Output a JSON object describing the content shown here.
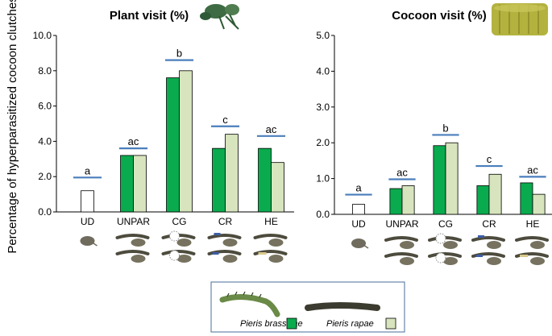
{
  "y_axis_label": "Percentage of hyperparasitized cocoon clutches",
  "legend": {
    "entries": [
      {
        "name": "Pieris brassicae",
        "color": "#0aab4e",
        "icon": "caterpillar-green-icon"
      },
      {
        "name": "Pieris rapae",
        "color": "#d7e4bd",
        "icon": "caterpillar-dark-icon"
      }
    ]
  },
  "chart_data": [
    {
      "type": "bar",
      "title": "Plant visit (%)",
      "title_icon": "plant-icon",
      "categories": [
        "UD",
        "UNPAR",
        "CG",
        "CR",
        "HE"
      ],
      "ylim": [
        0,
        10
      ],
      "yticks": [
        "0.0",
        "2.0",
        "4.0",
        "6.0",
        "8.0",
        "10.0"
      ],
      "undamaged": {
        "category": "UD",
        "value": 1.2
      },
      "series": [
        {
          "name": "Pieris brassicae",
          "color": "#0aab4e",
          "values": [
            null,
            3.2,
            7.6,
            3.6,
            3.6
          ]
        },
        {
          "name": "Pieris rapae",
          "color": "#d7e4bd",
          "values": [
            null,
            3.2,
            8.0,
            4.4,
            2.8
          ]
        }
      ],
      "significance_letters": [
        "a",
        "ac",
        "b",
        "c",
        "ac"
      ],
      "significance_line_level": [
        1.95,
        3.6,
        8.6,
        4.85,
        4.3
      ]
    },
    {
      "type": "bar",
      "title": "Cocoon visit (%)",
      "title_icon": "cocoon-icon",
      "categories": [
        "UD",
        "UNPAR",
        "CG",
        "CR",
        "HE"
      ],
      "ylim": [
        0,
        5
      ],
      "yticks": [
        "0.0",
        "1.0",
        "2.0",
        "3.0",
        "4.0",
        "5.0"
      ],
      "undamaged": {
        "category": "UD",
        "value": 0.28
      },
      "series": [
        {
          "name": "Pieris brassicae",
          "color": "#0aab4e",
          "values": [
            null,
            0.72,
            1.92,
            0.8,
            0.88
          ]
        },
        {
          "name": "Pieris rapae",
          "color": "#d7e4bd",
          "values": [
            null,
            0.8,
            2.0,
            1.12,
            0.56
          ]
        }
      ],
      "significance_letters": [
        "a",
        "ac",
        "b",
        "c",
        "ac"
      ],
      "significance_line_level": [
        0.55,
        0.98,
        2.22,
        1.35,
        1.05
      ]
    }
  ]
}
